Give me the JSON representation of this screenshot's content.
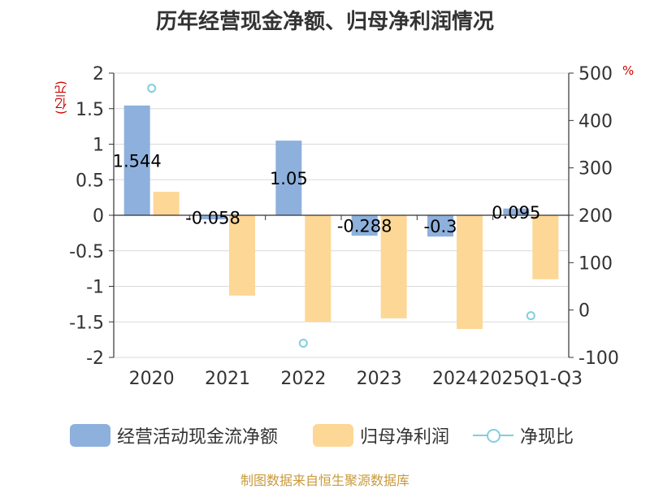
{
  "chart_data": {
    "type": "bar",
    "title": "历年经营现金净额、归母净利润情况",
    "categories": [
      "2020",
      "2021",
      "2022",
      "2023",
      "2024",
      "2025Q1-Q3"
    ],
    "y_unit": "(亿元)",
    "y2_unit": "%",
    "ylim": [
      -2,
      2
    ],
    "y_ticks": [
      "2",
      "1.5",
      "1",
      "0.5",
      "0",
      "-0.5",
      "-1",
      "-1.5",
      "-2"
    ],
    "y2lim": [
      -100,
      500
    ],
    "y2_ticks": [
      "500",
      "400",
      "300",
      "200",
      "100",
      "0",
      "-100"
    ],
    "series": [
      {
        "name": "经营活动现金流净额",
        "type": "bar",
        "axis": "left",
        "color": "#8eb0dc",
        "values": [
          1.544,
          -0.058,
          1.05,
          -0.288,
          -0.3,
          0.095
        ],
        "labels": [
          "1.544",
          "-0.058",
          "1.05",
          "-0.288",
          "-0.3",
          "0.095"
        ]
      },
      {
        "name": "归母净利润",
        "type": "bar",
        "axis": "left",
        "color": "#fdd795",
        "values": [
          0.33,
          -1.13,
          -1.5,
          -1.45,
          -1.6,
          -0.9
        ]
      },
      {
        "name": "净现比",
        "type": "scatter",
        "axis": "right",
        "color": "#7fcfe0",
        "values": [
          468,
          null,
          -70,
          null,
          null,
          -12
        ]
      }
    ],
    "grid": true,
    "legend_position": "bottom"
  },
  "source": "制图数据来自恒生聚源数据库"
}
